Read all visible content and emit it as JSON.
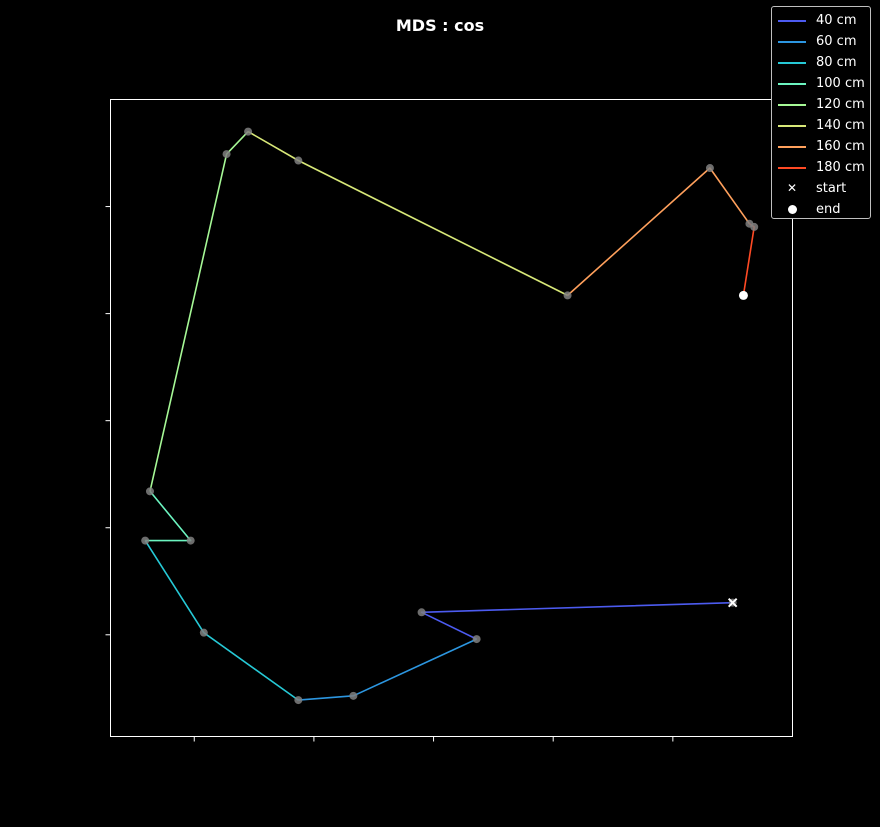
{
  "chart_data": {
    "type": "line",
    "title": "MDS : cos",
    "xlabel": "",
    "ylabel": "",
    "xlim": [
      -1.35,
      4.35
    ],
    "ylim": [
      -4.45,
      1.5
    ],
    "xticks": [
      -0.65,
      0.35,
      1.35,
      2.35,
      3.35
    ],
    "yticks": [
      -3.5,
      -2.5,
      -1.5,
      -0.5,
      0.5
    ],
    "tick_labels_visible": false,
    "grid": false,
    "background": "#000000",
    "axes_color": "#ffffff",
    "point_color": "#808080",
    "legend_position": "upper-right-outside",
    "series": [
      {
        "name": "40 cm",
        "color": "#4c5bf0",
        "points": [
          [
            3.85,
            -3.2
          ],
          [
            1.25,
            -3.29
          ],
          [
            1.71,
            -3.54
          ]
        ]
      },
      {
        "name": "60 cm",
        "color": "#2c96e0",
        "points": [
          [
            1.71,
            -3.54
          ],
          [
            0.68,
            -4.07
          ],
          [
            0.22,
            -4.11
          ]
        ]
      },
      {
        "name": "80 cm",
        "color": "#26c9d6",
        "points": [
          [
            0.22,
            -4.11
          ],
          [
            -0.57,
            -3.48
          ],
          [
            -1.06,
            -2.62
          ]
        ]
      },
      {
        "name": "100 cm",
        "color": "#6cf4c0",
        "points": [
          [
            -1.06,
            -2.62
          ],
          [
            -0.68,
            -2.62
          ],
          [
            -1.02,
            -2.16
          ]
        ]
      },
      {
        "name": "120 cm",
        "color": "#a6f896",
        "points": [
          [
            -1.02,
            -2.16
          ],
          [
            -0.38,
            0.99
          ],
          [
            -0.2,
            1.2
          ]
        ]
      },
      {
        "name": "140 cm",
        "color": "#d8e878",
        "points": [
          [
            -0.2,
            1.2
          ],
          [
            0.22,
            0.93
          ],
          [
            2.47,
            -0.33
          ]
        ]
      },
      {
        "name": "160 cm",
        "color": "#ffa05c",
        "points": [
          [
            2.47,
            -0.33
          ],
          [
            3.66,
            0.86
          ],
          [
            3.99,
            0.34
          ]
        ]
      },
      {
        "name": "180 cm",
        "color": "#ff4a24",
        "points": [
          [
            3.99,
            0.34
          ],
          [
            4.03,
            0.31
          ],
          [
            3.94,
            -0.33
          ]
        ]
      }
    ],
    "start": {
      "label": "start",
      "point": [
        3.85,
        -3.2
      ],
      "color": "#ffffff"
    },
    "end": {
      "label": "end",
      "point": [
        3.94,
        -0.33
      ],
      "color": "#ffffff"
    }
  }
}
